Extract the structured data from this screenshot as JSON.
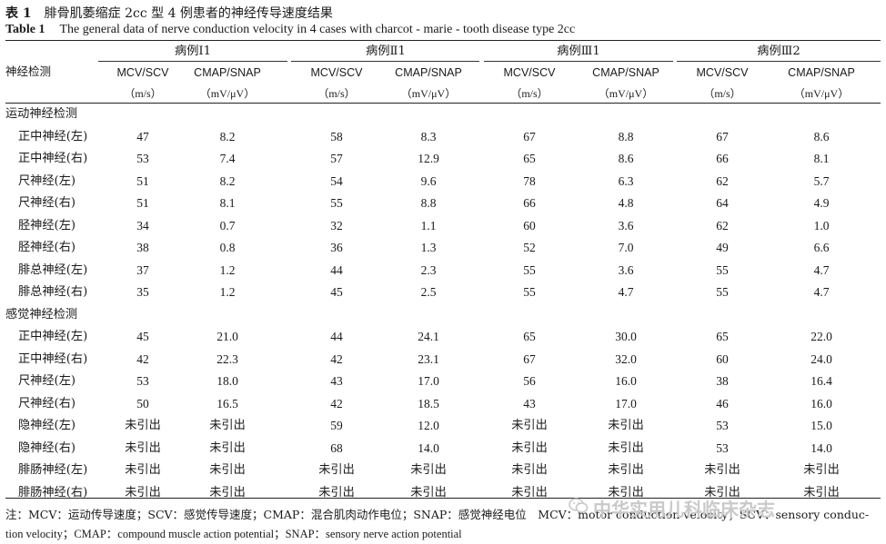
{
  "caption_zh": {
    "label": "表 1",
    "text": "腓骨肌萎缩症 2cc 型 4 例患者的神经传导速度结果"
  },
  "caption_en": {
    "label": "Table 1",
    "text": "The general data of nerve conduction velocity in 4 cases with charcot - marie - tooth disease type 2cc"
  },
  "row_header": "神经检测",
  "groups": [
    "病例Ⅰ1",
    "病例Ⅱ1",
    "病例Ⅲ1",
    "病例Ⅲ2"
  ],
  "col_headers": [
    "MCV/SCV",
    "CMAP/SNAP"
  ],
  "col_units": [
    "（m/s）",
    "（mV/μV）"
  ],
  "sections": [
    {
      "title": "运动神经检测",
      "rows": [
        {
          "label": "正中神经(左)",
          "values": [
            "47",
            "8.2",
            "58",
            "8.3",
            "67",
            "8.8",
            "67",
            "8.6"
          ]
        },
        {
          "label": "正中神经(右)",
          "values": [
            "53",
            "7.4",
            "57",
            "12.9",
            "65",
            "8.6",
            "66",
            "8.1"
          ]
        },
        {
          "label": "尺神经(左)",
          "values": [
            "51",
            "8.2",
            "54",
            "9.6",
            "78",
            "6.3",
            "62",
            "5.7"
          ]
        },
        {
          "label": "尺神经(右)",
          "values": [
            "51",
            "8.1",
            "55",
            "8.8",
            "66",
            "4.8",
            "64",
            "4.9"
          ]
        },
        {
          "label": "胫神经(左)",
          "values": [
            "34",
            "0.7",
            "32",
            "1.1",
            "60",
            "3.6",
            "62",
            "1.0"
          ]
        },
        {
          "label": "胫神经(右)",
          "values": [
            "38",
            "0.8",
            "36",
            "1.3",
            "52",
            "7.0",
            "49",
            "6.6"
          ]
        },
        {
          "label": "腓总神经(左)",
          "values": [
            "37",
            "1.2",
            "44",
            "2.3",
            "55",
            "3.6",
            "55",
            "4.7"
          ]
        },
        {
          "label": "腓总神经(右)",
          "values": [
            "35",
            "1.2",
            "45",
            "2.5",
            "55",
            "4.7",
            "55",
            "4.7"
          ]
        }
      ]
    },
    {
      "title": "感觉神经检测",
      "rows": [
        {
          "label": "正中神经(左)",
          "values": [
            "45",
            "21.0",
            "44",
            "24.1",
            "65",
            "30.0",
            "65",
            "22.0"
          ]
        },
        {
          "label": "正中神经(右)",
          "values": [
            "42",
            "22.3",
            "42",
            "23.1",
            "67",
            "32.0",
            "60",
            "24.0"
          ]
        },
        {
          "label": "尺神经(左)",
          "values": [
            "53",
            "18.0",
            "43",
            "17.0",
            "56",
            "16.0",
            "38",
            "16.4"
          ]
        },
        {
          "label": "尺神经(右)",
          "values": [
            "50",
            "16.5",
            "42",
            "18.5",
            "43",
            "17.0",
            "46",
            "16.0"
          ]
        },
        {
          "label": "隐神经(左)",
          "values": [
            "未引出",
            "未引出",
            "59",
            "12.0",
            "未引出",
            "未引出",
            "53",
            "15.0"
          ]
        },
        {
          "label": "隐神经(右)",
          "values": [
            "未引出",
            "未引出",
            "68",
            "14.0",
            "未引出",
            "未引出",
            "53",
            "14.0"
          ]
        },
        {
          "label": "腓肠神经(左)",
          "values": [
            "未引出",
            "未引出",
            "未引出",
            "未引出",
            "未引出",
            "未引出",
            "未引出",
            "未引出"
          ]
        },
        {
          "label": "腓肠神经(右)",
          "values": [
            "未引出",
            "未引出",
            "未引出",
            "未引出",
            "未引出",
            "未引出",
            "未引出",
            "未引出"
          ]
        }
      ]
    }
  ],
  "note_line1": "注：MCV：运动传导速度；SCV：感觉传导速度；CMAP：混合肌肉动作电位；SNAP：感觉神经电位　MCV：motor conduction velocity；SCV：sensory conduc-",
  "note_line2": "tion velocity；CMAP：compound muscle action potential；SNAP：sensory nerve action potential",
  "watermark": "中华实用儿科临床杂志"
}
